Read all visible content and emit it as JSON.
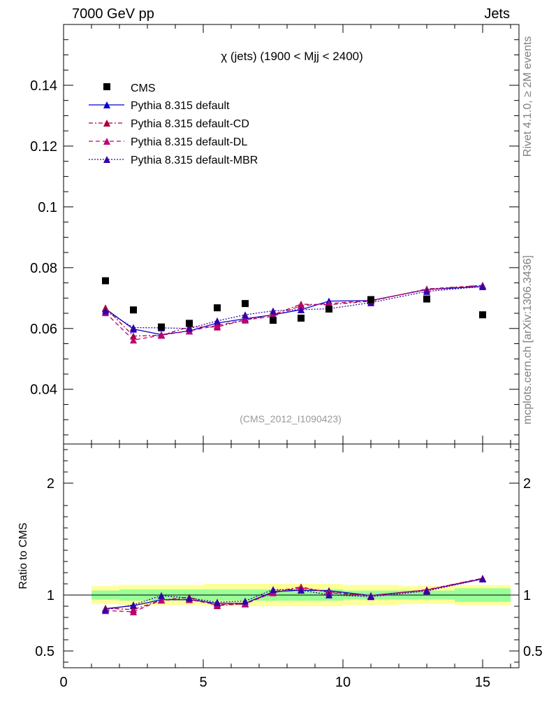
{
  "header": {
    "left": "7000 GeV pp",
    "right": "Jets"
  },
  "side": {
    "rivet": "Rivet 4.1.0, ≥ 2M events",
    "mcplots": "mcplots.cern.ch [arXiv:1306.3436]"
  },
  "chart_data": {
    "type": "line",
    "title": "χ (jets) (1900 < Mjj < 2400)",
    "watermark": "(CMS_2012_I1090423)",
    "xlim": [
      0,
      16.3
    ],
    "ylim": [
      0.022,
      0.16
    ],
    "ratio_ylabel": "Ratio to CMS",
    "ratio_ylim": [
      0.35,
      2.35
    ],
    "x_ticks": [
      0,
      5,
      10,
      15
    ],
    "x_tick_labels": [
      "0",
      "5",
      "10",
      "15"
    ],
    "y_ticks": [
      0.04,
      0.06,
      0.08,
      0.1,
      0.12,
      0.14
    ],
    "y_tick_labels": [
      "0.04",
      "0.06",
      "0.08",
      "0.1",
      "0.12",
      "0.14"
    ],
    "ratio_y_ticks": [
      0.5,
      1,
      2
    ],
    "ratio_y_tick_labels": [
      "0.5",
      "1",
      "2"
    ],
    "x": [
      1.5,
      2.5,
      3.5,
      4.5,
      5.5,
      6.5,
      7.5,
      8.5,
      9.5,
      11,
      13,
      15
    ],
    "bin_edges": [
      1,
      2,
      3,
      4,
      5,
      6,
      7,
      8,
      9,
      10,
      12,
      14,
      16
    ],
    "data": {
      "name": "CMS",
      "values": [
        0.0757,
        0.0661,
        0.0605,
        0.0617,
        0.0668,
        0.0682,
        0.0627,
        0.0634,
        0.0664,
        0.0695,
        0.0697,
        0.0645
      ]
    },
    "band_inner": [
      0.04,
      0.05,
      0.05,
      0.05,
      0.05,
      0.05,
      0.05,
      0.05,
      0.05,
      0.04,
      0.04,
      0.06
    ],
    "band_outer": [
      0.08,
      0.09,
      0.09,
      0.09,
      0.1,
      0.1,
      0.1,
      0.1,
      0.1,
      0.09,
      0.08,
      0.09
    ],
    "series": [
      {
        "name": "Pythia 8.315 default",
        "color": "#0000cc",
        "dash": "",
        "values": [
          0.0665,
          0.0598,
          0.058,
          0.0592,
          0.0618,
          0.0632,
          0.0645,
          0.0662,
          0.069,
          0.0692,
          0.0728,
          0.0738
        ]
      },
      {
        "name": "Pythia 8.315 default-CD",
        "color": "#aa0033",
        "dash": "6,3,2,3",
        "values": [
          0.0668,
          0.0575,
          0.0578,
          0.0605,
          0.0605,
          0.0628,
          0.0645,
          0.068,
          0.0678,
          0.069,
          0.073,
          0.0742
        ]
      },
      {
        "name": "Pythia 8.315 default-DL",
        "color": "#bb0077",
        "dash": "6,4",
        "values": [
          0.0652,
          0.0562,
          0.0578,
          0.0592,
          0.061,
          0.0628,
          0.064,
          0.0675,
          0.0682,
          0.0692,
          0.0728,
          0.0742
        ]
      },
      {
        "name": "Pythia 8.315 default-MBR",
        "color": "#3300aa",
        "dash": "2,2",
        "values": [
          0.0658,
          0.0603,
          0.0602,
          0.06,
          0.0625,
          0.0645,
          0.0658,
          0.0662,
          0.0665,
          0.0685,
          0.0722,
          0.0738
        ]
      }
    ]
  }
}
